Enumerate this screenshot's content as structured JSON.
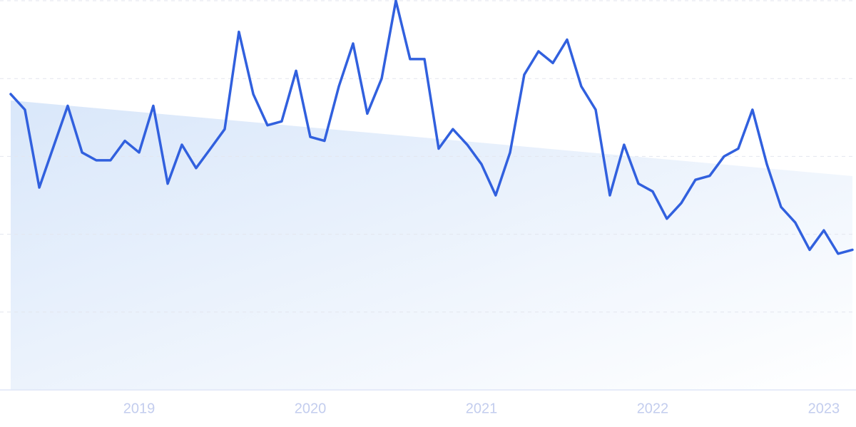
{
  "chart_data": {
    "type": "line",
    "x": [
      2018.25,
      2018.333,
      2018.417,
      2018.5,
      2018.583,
      2018.667,
      2018.75,
      2018.833,
      2018.917,
      2019,
      2019.083,
      2019.167,
      2019.25,
      2019.333,
      2019.417,
      2019.5,
      2019.583,
      2019.667,
      2019.75,
      2019.833,
      2019.917,
      2020,
      2020.083,
      2020.167,
      2020.25,
      2020.333,
      2020.417,
      2020.5,
      2020.583,
      2020.667,
      2020.75,
      2020.833,
      2020.917,
      2021,
      2021.083,
      2021.167,
      2021.25,
      2021.333,
      2021.417,
      2021.5,
      2021.583,
      2021.667,
      2021.75,
      2021.833,
      2021.917,
      2022,
      2022.083,
      2022.167,
      2022.25,
      2022.333,
      2022.417,
      2022.5,
      2022.583,
      2022.667,
      2022.75,
      2022.833,
      2022.917,
      2023,
      2023.083,
      2023.167
    ],
    "values": [
      76,
      72,
      52,
      62.5,
      73,
      61,
      59,
      59,
      64,
      61,
      73,
      53,
      63,
      57,
      62,
      67,
      92,
      76,
      68,
      69,
      82,
      65,
      64,
      78,
      89,
      71,
      80,
      100,
      85,
      85,
      62,
      67,
      63,
      58,
      50,
      61,
      81,
      87,
      84,
      90,
      78,
      72,
      50,
      63,
      53,
      51,
      44,
      48,
      54,
      55,
      60,
      62,
      72,
      58,
      47,
      43,
      36,
      41,
      35,
      36
    ],
    "color": "#3160de",
    "xlim": [
      2018.25,
      2023.167
    ],
    "xticks": [
      2019,
      2020,
      2021,
      2022,
      2023
    ],
    "ylim": [
      0,
      100
    ],
    "yticks": [
      0,
      20,
      40,
      60,
      80,
      100
    ],
    "grid": true,
    "trend": true
  }
}
